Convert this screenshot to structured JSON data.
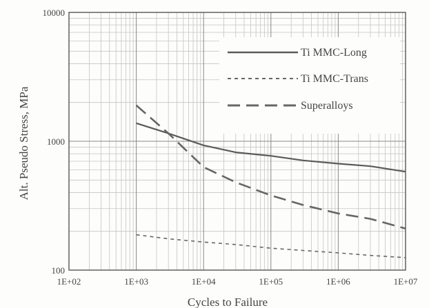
{
  "chart_data": {
    "type": "line",
    "xlabel": "Cycles to Failure",
    "ylabel": "Alt. Pseudo Stress, MPa",
    "xscale": "log",
    "yscale": "log",
    "xlim": [
      100,
      10000000
    ],
    "ylim": [
      100,
      10000
    ],
    "grid": true,
    "legend_position": "top-right",
    "x_ticks": [
      {
        "value": 100,
        "label": "1E+02"
      },
      {
        "value": 1000,
        "label": "1E+03"
      },
      {
        "value": 10000,
        "label": "1E+04"
      },
      {
        "value": 100000,
        "label": "1E+05"
      },
      {
        "value": 1000000,
        "label": "1E+06"
      },
      {
        "value": 10000000,
        "label": "1E+07"
      }
    ],
    "y_ticks": [
      {
        "value": 100,
        "label": "100"
      },
      {
        "value": 1000,
        "label": "1000"
      },
      {
        "value": 10000,
        "label": "10000"
      }
    ],
    "series": [
      {
        "name": "Ti MMC-Long",
        "style": "solid",
        "color": "#5a5a5a",
        "x": [
          1000,
          3000,
          10000,
          30000,
          100000,
          300000,
          1000000,
          3000000,
          10000000
        ],
        "y": [
          1380,
          1150,
          930,
          820,
          770,
          710,
          670,
          640,
          580
        ]
      },
      {
        "name": "Ti MMC-Trans",
        "style": "dotted",
        "color": "#666666",
        "x": [
          1000,
          3000,
          10000,
          30000,
          100000,
          300000,
          1000000,
          3000000,
          10000000
        ],
        "y": [
          188,
          175,
          165,
          158,
          148,
          142,
          136,
          130,
          125
        ]
      },
      {
        "name": "Superalloys",
        "style": "dashed",
        "color": "#666666",
        "x": [
          1000,
          3000,
          10000,
          30000,
          100000,
          300000,
          1000000,
          3000000,
          10000000
        ],
        "y": [
          1900,
          1150,
          630,
          480,
          380,
          320,
          275,
          250,
          210
        ]
      }
    ]
  }
}
